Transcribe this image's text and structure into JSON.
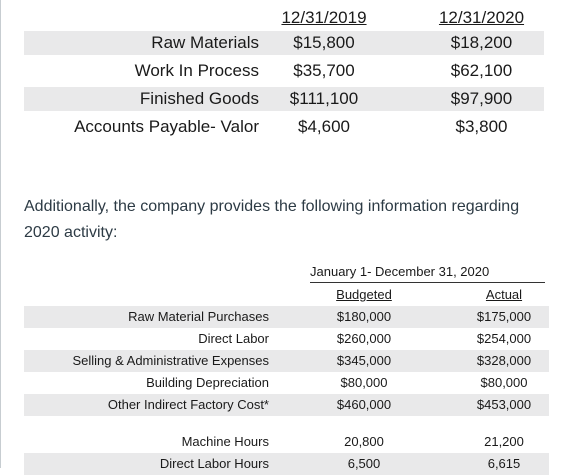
{
  "inventory": {
    "headers": [
      "12/31/2019",
      "12/31/2020"
    ],
    "rows": [
      {
        "label": "Raw Materials",
        "v2019": "$15,800",
        "v2020": "$18,200"
      },
      {
        "label": "Work In Process",
        "v2019": "$35,700",
        "v2020": "$62,100"
      },
      {
        "label": "Finished Goods",
        "v2019": "$111,100",
        "v2020": "$97,900"
      },
      {
        "label": "Accounts Payable- Valor",
        "v2019": "$4,600",
        "v2020": "$3,800"
      }
    ]
  },
  "paragraph": {
    "line1": "Additionally, the company provides the following information regarding",
    "line2": "2020 activity:"
  },
  "activity": {
    "period": "January 1- December 31, 2020",
    "headers": {
      "budgeted": "Budgeted",
      "actual": "Actual"
    },
    "rows": [
      {
        "label": "Raw Material Purchases",
        "budgeted": "$180,000",
        "actual": "$175,000"
      },
      {
        "label": "Direct Labor",
        "budgeted": "$260,000",
        "actual": "$254,000"
      },
      {
        "label": "Selling & Administrative Expenses",
        "budgeted": "$345,000",
        "actual": "$328,000"
      },
      {
        "label": "Building Depreciation",
        "budgeted": "$80,000",
        "actual": "$80,000"
      },
      {
        "label": "Other Indirect Factory Cost*",
        "budgeted": "$460,000",
        "actual": "$453,000"
      }
    ],
    "hours": [
      {
        "label": "Machine Hours",
        "budgeted": "20,800",
        "actual": "21,200"
      },
      {
        "label": "Direct Labor Hours",
        "budgeted": "6,500",
        "actual": "6,615"
      }
    ]
  }
}
